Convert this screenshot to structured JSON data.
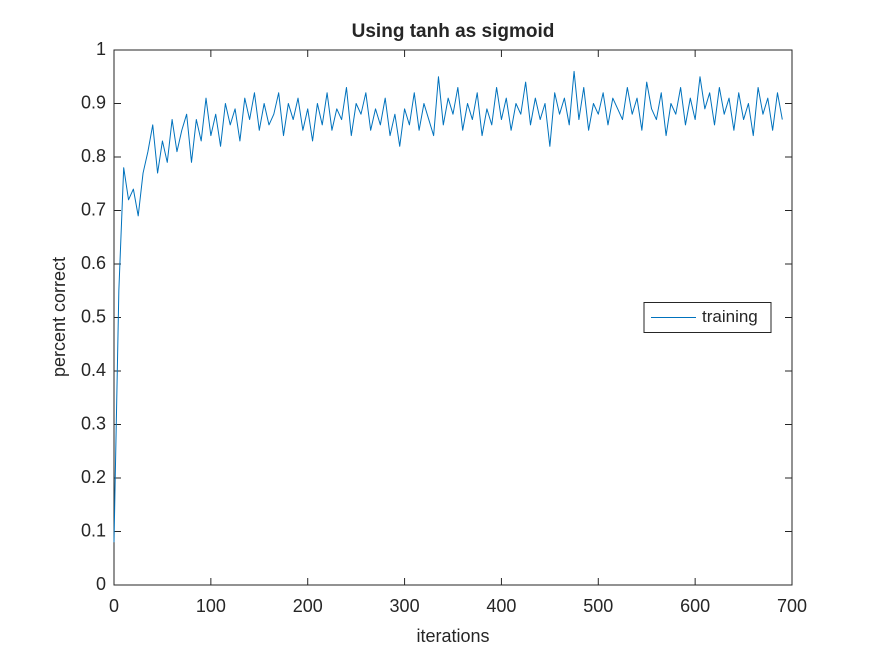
{
  "chart_data": {
    "type": "line",
    "title": "Using tanh as sigmoid",
    "x_label": "iterations",
    "y_label": "percent correct",
    "x": [
      0,
      5,
      10,
      15,
      20,
      25,
      30,
      35,
      40,
      45,
      50,
      55,
      60,
      65,
      70,
      75,
      80,
      85,
      90,
      95,
      100,
      105,
      110,
      115,
      120,
      125,
      130,
      135,
      140,
      145,
      150,
      155,
      160,
      165,
      170,
      175,
      180,
      185,
      190,
      195,
      200,
      205,
      210,
      215,
      220,
      225,
      230,
      235,
      240,
      245,
      250,
      255,
      260,
      265,
      270,
      275,
      280,
      285,
      290,
      295,
      300,
      305,
      310,
      315,
      320,
      325,
      330,
      335,
      340,
      345,
      350,
      355,
      360,
      365,
      370,
      375,
      380,
      385,
      390,
      395,
      400,
      405,
      410,
      415,
      420,
      425,
      430,
      435,
      440,
      445,
      450,
      455,
      460,
      465,
      470,
      475,
      480,
      485,
      490,
      495,
      500,
      505,
      510,
      515,
      520,
      525,
      530,
      535,
      540,
      545,
      550,
      555,
      560,
      565,
      570,
      575,
      580,
      585,
      590,
      595,
      600,
      605,
      610,
      615,
      620,
      625,
      630,
      635,
      640,
      645,
      650,
      655,
      660,
      665,
      670,
      675,
      680,
      685,
      690
    ],
    "series": [
      {
        "name": "training",
        "color": "#0072bd",
        "values": [
          0.08,
          0.55,
          0.78,
          0.72,
          0.74,
          0.69,
          0.77,
          0.81,
          0.86,
          0.77,
          0.83,
          0.79,
          0.87,
          0.81,
          0.85,
          0.88,
          0.79,
          0.87,
          0.83,
          0.91,
          0.84,
          0.88,
          0.82,
          0.9,
          0.86,
          0.89,
          0.83,
          0.91,
          0.87,
          0.92,
          0.85,
          0.9,
          0.86,
          0.88,
          0.92,
          0.84,
          0.9,
          0.87,
          0.91,
          0.85,
          0.89,
          0.83,
          0.9,
          0.86,
          0.92,
          0.85,
          0.89,
          0.87,
          0.93,
          0.84,
          0.9,
          0.88,
          0.92,
          0.85,
          0.89,
          0.86,
          0.91,
          0.84,
          0.88,
          0.82,
          0.89,
          0.86,
          0.92,
          0.85,
          0.9,
          0.87,
          0.84,
          0.95,
          0.86,
          0.91,
          0.88,
          0.93,
          0.85,
          0.9,
          0.87,
          0.92,
          0.84,
          0.89,
          0.86,
          0.93,
          0.87,
          0.91,
          0.85,
          0.9,
          0.88,
          0.94,
          0.86,
          0.91,
          0.87,
          0.9,
          0.82,
          0.92,
          0.88,
          0.91,
          0.86,
          0.96,
          0.87,
          0.93,
          0.85,
          0.9,
          0.88,
          0.92,
          0.86,
          0.91,
          0.89,
          0.87,
          0.93,
          0.88,
          0.91,
          0.85,
          0.94,
          0.89,
          0.87,
          0.92,
          0.84,
          0.9,
          0.88,
          0.93,
          0.86,
          0.91,
          0.87,
          0.95,
          0.89,
          0.92,
          0.86,
          0.93,
          0.88,
          0.91,
          0.85,
          0.92,
          0.87,
          0.9,
          0.84,
          0.93,
          0.88,
          0.91,
          0.85,
          0.92,
          0.87
        ]
      }
    ],
    "xlim": [
      0,
      700
    ],
    "xticks": [
      0,
      100,
      200,
      300,
      400,
      500,
      600,
      700
    ],
    "ylim": [
      0,
      1
    ],
    "yticks": [
      0,
      0.1,
      0.2,
      0.3,
      0.4,
      0.5,
      0.6,
      0.7,
      0.8,
      0.9,
      1
    ],
    "grid": false,
    "legend_position": "east"
  }
}
